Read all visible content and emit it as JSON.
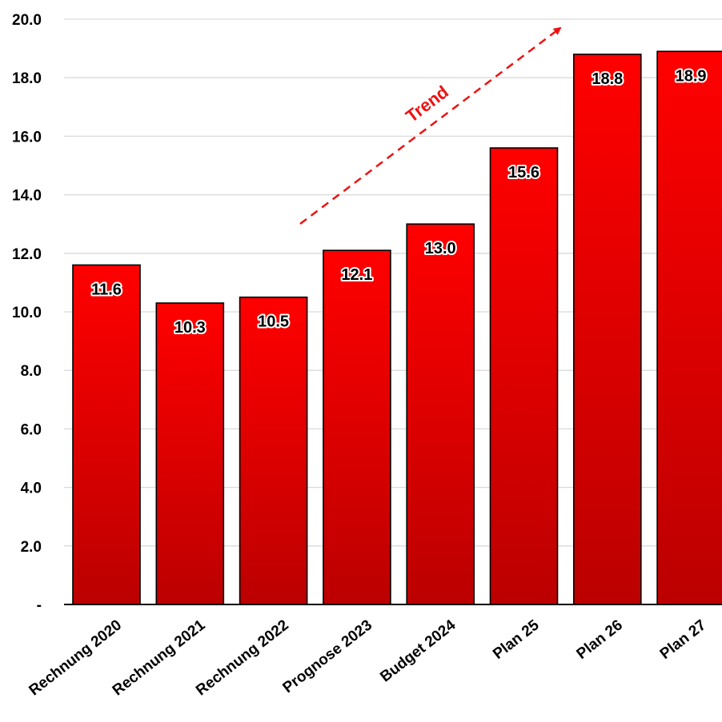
{
  "chart_data": {
    "type": "bar",
    "categories": [
      "Rechnung 2020",
      "Rechnung 2021",
      "Rechnung 2022",
      "Prognose 2023",
      "Budget 2024",
      "Plan 25",
      "Plan 26",
      "Plan 27"
    ],
    "values": [
      11.6,
      10.3,
      10.5,
      12.1,
      13.0,
      15.6,
      18.8,
      18.9
    ],
    "value_labels": [
      "11.6",
      "10.3",
      "10.5",
      "12.1",
      "13.0",
      "15.6",
      "18.8",
      "18.9"
    ],
    "ylim": [
      0,
      20
    ],
    "yticks": [
      0,
      2,
      4,
      6,
      8,
      10,
      12,
      14,
      16,
      18,
      20
    ],
    "ytick_labels": [
      "-",
      "2.0",
      "4.0",
      "6.0",
      "8.0",
      "10.0",
      "12.0",
      "14.0",
      "16.0",
      "18.0",
      "20.0"
    ],
    "grid": true,
    "bar_color": "#ee0000",
    "bar_color_dark": "#bb0000",
    "annotation": {
      "text": "Trend",
      "color": "#ee1111",
      "style": "dashed-arrow"
    }
  }
}
